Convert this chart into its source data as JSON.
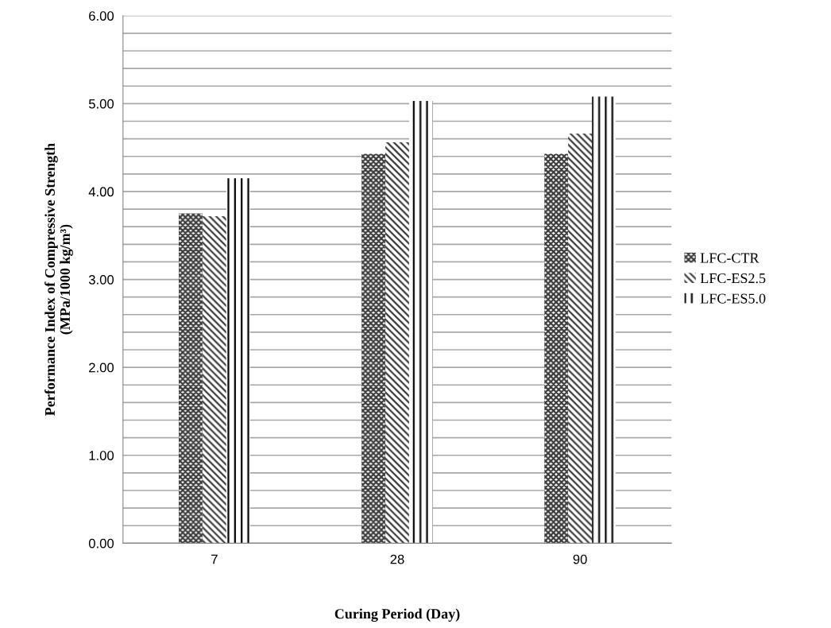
{
  "chart_data": {
    "type": "bar",
    "xlabel": "Curing Period (Day)",
    "ylabel": "Performance Index of Compressive Strength\n(MPa/1000 kg/m³)",
    "categories": [
      "7",
      "28",
      "90"
    ],
    "series": [
      {
        "name": "LFC-CTR",
        "color": "#3a3a3a",
        "values": [
          3.75,
          4.43,
          4.43
        ]
      },
      {
        "name": "LFC-ES2.5",
        "color": "#3a3a3a",
        "values": [
          3.72,
          4.56,
          4.66
        ]
      },
      {
        "name": "LFC-ES5.0",
        "color": "#000000",
        "values": [
          4.15,
          5.03,
          5.08
        ]
      }
    ],
    "ylim": [
      0,
      6
    ],
    "yticks": [
      {
        "value": 0,
        "label": "0.00"
      },
      {
        "value": 0.2,
        "label": null
      },
      {
        "value": 0.4,
        "label": null
      },
      {
        "value": 0.6,
        "label": null
      },
      {
        "value": 0.8,
        "label": null
      },
      {
        "value": 1,
        "label": "1.00"
      },
      {
        "value": 1.2,
        "label": null
      },
      {
        "value": 1.4,
        "label": null
      },
      {
        "value": 1.6,
        "label": null
      },
      {
        "value": 1.8,
        "label": null
      },
      {
        "value": 2,
        "label": "2.00"
      },
      {
        "value": 2.2,
        "label": null
      },
      {
        "value": 2.4,
        "label": null
      },
      {
        "value": 2.6,
        "label": null
      },
      {
        "value": 2.8,
        "label": null
      },
      {
        "value": 3,
        "label": "3.00"
      },
      {
        "value": 3.2,
        "label": null
      },
      {
        "value": 3.4,
        "label": null
      },
      {
        "value": 3.6,
        "label": null
      },
      {
        "value": 3.8,
        "label": null
      },
      {
        "value": 4,
        "label": "4.00"
      },
      {
        "value": 4.2,
        "label": null
      },
      {
        "value": 4.4,
        "label": null
      },
      {
        "value": 4.6,
        "label": null
      },
      {
        "value": 4.8,
        "label": null
      },
      {
        "value": 5,
        "label": "5.00"
      },
      {
        "value": 5.2,
        "label": null
      },
      {
        "value": 5.4,
        "label": null
      },
      {
        "value": 5.6,
        "label": null
      },
      {
        "value": 5.8,
        "label": null
      },
      {
        "value": 6,
        "label": "6.00"
      }
    ],
    "grid": "y",
    "legend": "right"
  }
}
